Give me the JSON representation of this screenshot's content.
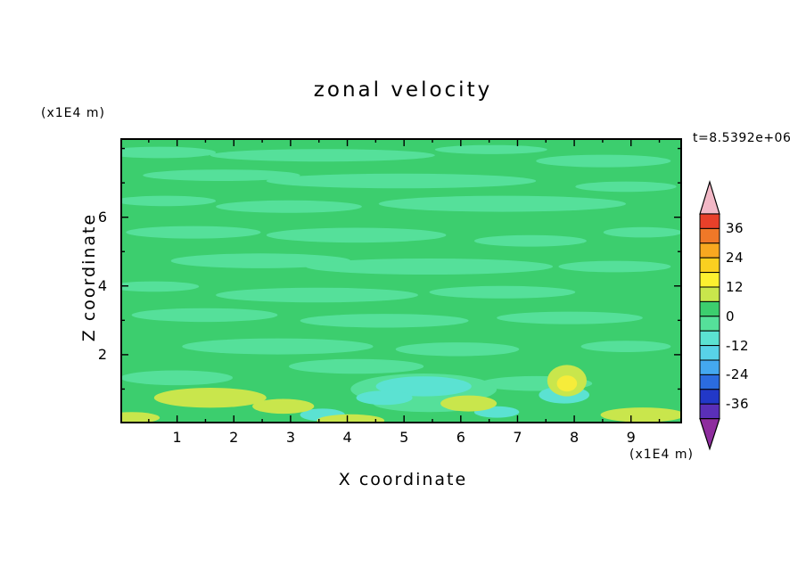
{
  "title": "zonal velocity",
  "timestamp": "t=8.5392e+06",
  "axes": {
    "x_label": "X coordinate",
    "x_units": "(x1E4 m)",
    "y_label": "Z coordinate",
    "y_units": "(x1E4 m)"
  },
  "chart_data": {
    "type": "heatmap",
    "title": "zonal velocity",
    "time_annotation": "t=8.5392e+06",
    "xlabel": "X coordinate",
    "ylabel": "Z coordinate",
    "x_units_label": "(x1E4 m)",
    "y_units_label": "(x1E4 m)",
    "xlim": [
      0,
      9.9
    ],
    "ylim": [
      0,
      8.3
    ],
    "x_major_ticks": [
      1,
      2,
      3,
      4,
      5,
      6,
      7,
      8,
      9
    ],
    "x_minor_ticks": [
      0.5,
      1.5,
      2.5,
      3.5,
      4.5,
      5.5,
      6.5,
      7.5,
      8.5,
      9.5
    ],
    "y_major_ticks": [
      2,
      4,
      6
    ],
    "y_minor_ticks": [
      1,
      3,
      5,
      7,
      8
    ],
    "grid": false,
    "legend_position": "right-colorbar",
    "colorbar": {
      "min": -42,
      "max": 42,
      "interval": 6,
      "tick_values": [
        36,
        24,
        12,
        0,
        -12,
        -24,
        -36
      ],
      "over_color": "#F2B8C6",
      "under_color": "#8E2D9E",
      "segment_colors_top_to_bottom": [
        "#E8402A",
        "#F07828",
        "#F8A820",
        "#FAD020",
        "#FCF030",
        "#C9E64C",
        "#3CCE6E",
        "#55E09A",
        "#5BE2D2",
        "#58D2E8",
        "#44A8F0",
        "#2B6CE0",
        "#2238C8",
        "#5A2FB8"
      ]
    },
    "level_colors": {
      "pos2": "#F6EC3A",
      "pos1": "#C9E64C",
      "bg": "#3CCE6E",
      "neg1": "#55E09A",
      "neg2": "#5BE2D2"
    },
    "background_level": "bg",
    "field_summary": "Horizontally banded zonal velocity field, mostly between -6 and 6; light-green low-amplitude streaks throughout, weak negative (cyan) patches and weak positive (yellow-green / yellow) patches concentrated near the bottom boundary",
    "features": [
      {
        "fx": 0.07,
        "fy": 0.05,
        "frx": 0.1,
        "fry": 0.02,
        "level": "neg1"
      },
      {
        "fx": 0.36,
        "fy": 0.06,
        "frx": 0.2,
        "fry": 0.022,
        "level": "neg1"
      },
      {
        "fx": 0.66,
        "fy": 0.04,
        "frx": 0.1,
        "fry": 0.016,
        "level": "neg1"
      },
      {
        "fx": 0.86,
        "fy": 0.08,
        "frx": 0.12,
        "fry": 0.022,
        "level": "neg1"
      },
      {
        "fx": 0.18,
        "fy": 0.13,
        "frx": 0.14,
        "fry": 0.02,
        "level": "neg1"
      },
      {
        "fx": 0.5,
        "fy": 0.15,
        "frx": 0.24,
        "fry": 0.026,
        "level": "neg1"
      },
      {
        "fx": 0.9,
        "fy": 0.17,
        "frx": 0.09,
        "fry": 0.018,
        "level": "neg1"
      },
      {
        "fx": 0.08,
        "fy": 0.22,
        "frx": 0.09,
        "fry": 0.018,
        "level": "neg1"
      },
      {
        "fx": 0.3,
        "fy": 0.24,
        "frx": 0.13,
        "fry": 0.022,
        "level": "neg1"
      },
      {
        "fx": 0.68,
        "fy": 0.23,
        "frx": 0.22,
        "fry": 0.028,
        "level": "neg1"
      },
      {
        "fx": 0.13,
        "fy": 0.33,
        "frx": 0.12,
        "fry": 0.022,
        "level": "neg1"
      },
      {
        "fx": 0.42,
        "fy": 0.34,
        "frx": 0.16,
        "fry": 0.026,
        "level": "neg1"
      },
      {
        "fx": 0.73,
        "fy": 0.36,
        "frx": 0.1,
        "fry": 0.02,
        "level": "neg1"
      },
      {
        "fx": 0.93,
        "fy": 0.33,
        "frx": 0.07,
        "fry": 0.018,
        "level": "neg1"
      },
      {
        "fx": 0.25,
        "fy": 0.43,
        "frx": 0.16,
        "fry": 0.026,
        "level": "neg1"
      },
      {
        "fx": 0.55,
        "fy": 0.45,
        "frx": 0.22,
        "fry": 0.028,
        "level": "neg1"
      },
      {
        "fx": 0.88,
        "fy": 0.45,
        "frx": 0.1,
        "fry": 0.02,
        "level": "neg1"
      },
      {
        "fx": 0.06,
        "fy": 0.52,
        "frx": 0.08,
        "fry": 0.018,
        "level": "neg1"
      },
      {
        "fx": 0.35,
        "fy": 0.55,
        "frx": 0.18,
        "fry": 0.026,
        "level": "neg1"
      },
      {
        "fx": 0.68,
        "fy": 0.54,
        "frx": 0.13,
        "fry": 0.022,
        "level": "neg1"
      },
      {
        "fx": 0.15,
        "fy": 0.62,
        "frx": 0.13,
        "fry": 0.024,
        "level": "neg1"
      },
      {
        "fx": 0.47,
        "fy": 0.64,
        "frx": 0.15,
        "fry": 0.024,
        "level": "neg1"
      },
      {
        "fx": 0.8,
        "fy": 0.63,
        "frx": 0.13,
        "fry": 0.022,
        "level": "neg1"
      },
      {
        "fx": 0.28,
        "fy": 0.73,
        "frx": 0.17,
        "fry": 0.028,
        "level": "neg1"
      },
      {
        "fx": 0.6,
        "fy": 0.74,
        "frx": 0.11,
        "fry": 0.024,
        "level": "neg1"
      },
      {
        "fx": 0.9,
        "fy": 0.73,
        "frx": 0.08,
        "fry": 0.02,
        "level": "neg1"
      },
      {
        "fx": 0.1,
        "fy": 0.84,
        "frx": 0.1,
        "fry": 0.026,
        "level": "neg1"
      },
      {
        "fx": 0.42,
        "fy": 0.8,
        "frx": 0.12,
        "fry": 0.026,
        "level": "neg1"
      },
      {
        "fx": 0.74,
        "fy": 0.86,
        "frx": 0.1,
        "fry": 0.026,
        "level": "neg1"
      },
      {
        "fx": 0.54,
        "fy": 0.88,
        "frx": 0.13,
        "fry": 0.055,
        "level": "neg1"
      },
      {
        "fx": 0.55,
        "fy": 0.93,
        "frx": 0.1,
        "fry": 0.03,
        "level": "neg1"
      },
      {
        "fx": 0.54,
        "fy": 0.87,
        "frx": 0.085,
        "fry": 0.035,
        "level": "neg2"
      },
      {
        "fx": 0.47,
        "fy": 0.91,
        "frx": 0.05,
        "fry": 0.025,
        "level": "neg2"
      },
      {
        "fx": 0.79,
        "fy": 0.9,
        "frx": 0.045,
        "fry": 0.03,
        "level": "neg2"
      },
      {
        "fx": 0.36,
        "fy": 0.97,
        "frx": 0.04,
        "fry": 0.022,
        "level": "neg2"
      },
      {
        "fx": 0.67,
        "fy": 0.96,
        "frx": 0.04,
        "fry": 0.02,
        "level": "neg2"
      },
      {
        "fx": 0.16,
        "fy": 0.91,
        "frx": 0.1,
        "fry": 0.035,
        "level": "pos1"
      },
      {
        "fx": 0.29,
        "fy": 0.94,
        "frx": 0.055,
        "fry": 0.026,
        "level": "pos1"
      },
      {
        "fx": 0.41,
        "fy": 0.99,
        "frx": 0.06,
        "fry": 0.022,
        "level": "pos1"
      },
      {
        "fx": 0.62,
        "fy": 0.93,
        "frx": 0.05,
        "fry": 0.028,
        "level": "pos1"
      },
      {
        "fx": 0.795,
        "fy": 0.85,
        "frx": 0.035,
        "fry": 0.055,
        "level": "pos1"
      },
      {
        "fx": 0.93,
        "fy": 0.97,
        "frx": 0.075,
        "fry": 0.026,
        "level": "pos1"
      },
      {
        "fx": 0.02,
        "fy": 0.98,
        "frx": 0.05,
        "fry": 0.02,
        "level": "pos1"
      },
      {
        "fx": 0.795,
        "fy": 0.86,
        "frx": 0.018,
        "fry": 0.028,
        "level": "pos2"
      }
    ]
  }
}
